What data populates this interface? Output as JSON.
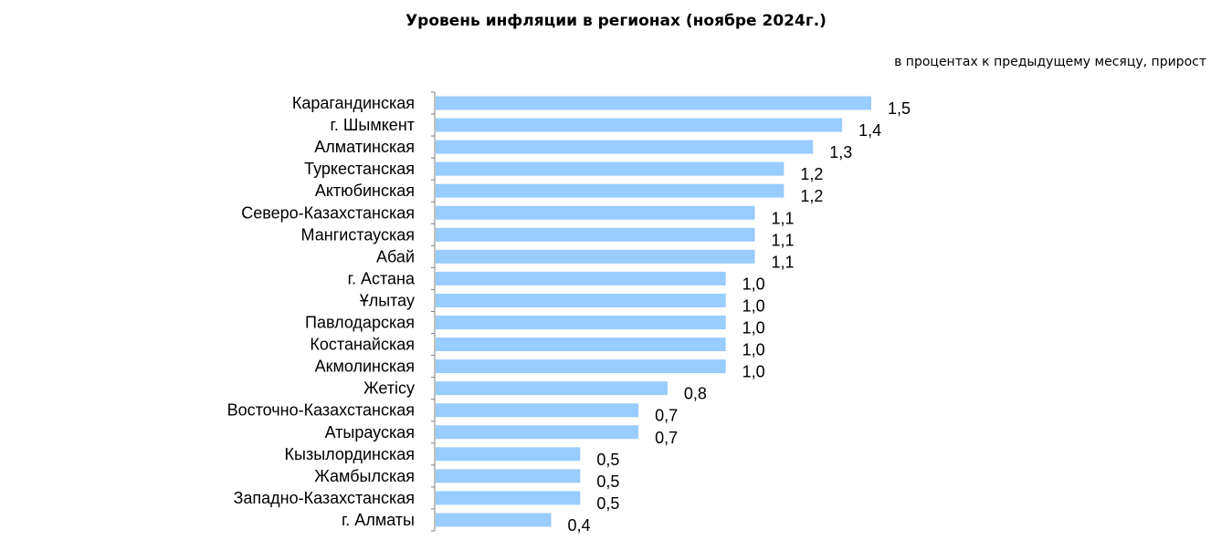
{
  "chart_data": {
    "type": "bar",
    "orientation": "horizontal",
    "title": "Уровень инфляции в регионах (ноябре 2024г.)",
    "subtitle": "в процентах к предыдущему месяцу, прирост",
    "categories": [
      "Карагандинская",
      "г. Шымкент",
      "Алматинская",
      "Туркестанская",
      "Актюбинская",
      "Северо-Казахстанская",
      "Мангистауская",
      "Абай",
      "г. Астана",
      "Ұлытау",
      "Павлодарская",
      "Костанайская",
      "Акмолинская",
      "Жетісу",
      "Восточно-Казахстанская",
      "Атырауская",
      "Кызылординская",
      "Жамбылская",
      "Западно-Казахстанская",
      "г. Алматы"
    ],
    "values": [
      1.5,
      1.4,
      1.3,
      1.2,
      1.2,
      1.1,
      1.1,
      1.1,
      1.0,
      1.0,
      1.0,
      1.0,
      1.0,
      0.8,
      0.7,
      0.7,
      0.5,
      0.5,
      0.5,
      0.4
    ],
    "value_labels": [
      "1,5",
      "1,4",
      "1,3",
      "1,2",
      "1,2",
      "1,1",
      "1,1",
      "1,1",
      "1,0",
      "1,0",
      "1,0",
      "1,0",
      "1,0",
      "0,8",
      "0,7",
      "0,7",
      "0,5",
      "0,5",
      "0,5",
      "0,4"
    ],
    "xlim": [
      0,
      1.5
    ],
    "grid": false,
    "legend": "none",
    "bar_color": "#99ccff"
  }
}
